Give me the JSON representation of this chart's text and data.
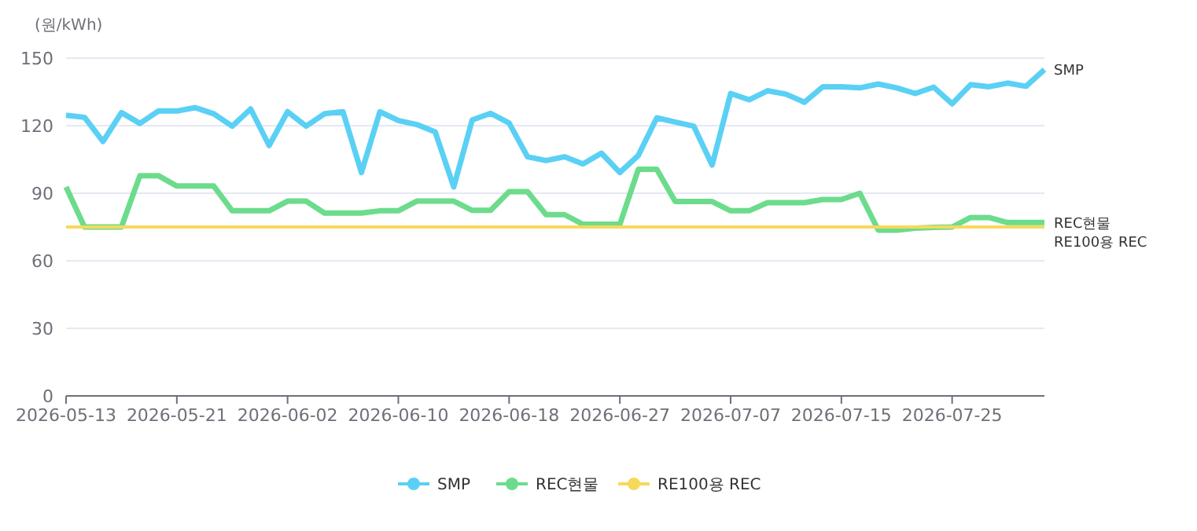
{
  "chart_data": {
    "type": "line",
    "ylabel": "(원/kWh)",
    "categories": [
      "2026-05-13",
      null,
      null,
      null,
      null,
      null,
      "2026-05-21",
      null,
      null,
      null,
      null,
      null,
      "2026-06-02",
      null,
      null,
      null,
      null,
      null,
      "2026-06-10",
      null,
      null,
      null,
      null,
      null,
      "2026-06-18",
      null,
      null,
      null,
      null,
      null,
      "2026-06-27",
      null,
      null,
      null,
      null,
      null,
      "2026-07-07",
      null,
      null,
      null,
      null,
      null,
      "2026-07-15",
      null,
      null,
      null,
      null,
      null,
      "2026-07-25",
      null,
      null,
      null,
      null,
      null
    ],
    "series": [
      {
        "name": "SMP",
        "color": "#5bd0f5",
        "values": [
          124.6,
          123.7,
          113,
          125.8,
          121,
          126.5,
          126.5,
          128,
          125.3,
          119.8,
          127.4,
          111.2,
          126.2,
          119.8,
          125.3,
          126.2,
          99.2,
          126.2,
          122.3,
          120.5,
          117.2,
          92.8,
          122.5,
          125.5,
          121.2,
          106.2,
          104.5,
          106.2,
          103,
          107.8,
          99.2,
          106.8,
          123.5,
          121.6,
          119.8,
          102.5,
          134.3,
          131.5,
          135.5,
          134,
          130.4,
          137.3,
          137.3,
          136.8,
          138.5,
          136.8,
          134.3,
          137.1,
          129.7,
          138.2,
          137.3,
          138.9,
          137.5,
          144.9
        ]
      },
      {
        "name": "REC현물",
        "color": "#6cdc8c",
        "values": [
          92.8,
          75,
          75,
          75,
          97.8,
          97.8,
          93.2,
          93.2,
          93.2,
          82.2,
          82.2,
          82.2,
          86.5,
          86.5,
          81.2,
          81.2,
          81.2,
          82.2,
          82.2,
          86.5,
          86.5,
          86.5,
          82.4,
          82.4,
          90.7,
          90.7,
          80.5,
          80.5,
          76.2,
          76.2,
          76.2,
          100.6,
          100.6,
          86.3,
          86.3,
          86.3,
          82.2,
          82.2,
          85.8,
          85.8,
          85.8,
          87.2,
          87.2,
          90,
          73.6,
          73.6,
          74.5,
          74.8,
          75,
          79.2,
          79.2,
          77,
          77,
          77
        ]
      },
      {
        "name": "RE100용 REC",
        "color": "#f7d95a",
        "values": [
          75,
          75,
          75,
          75,
          75,
          75,
          75,
          75,
          75,
          75,
          75,
          75,
          75,
          75,
          75,
          75,
          75,
          75,
          75,
          75,
          75,
          75,
          75,
          75,
          75,
          75,
          75,
          75,
          75,
          75,
          75,
          75,
          75,
          75,
          75,
          75,
          75,
          75,
          75,
          75,
          75,
          75,
          75,
          75,
          75,
          75,
          75,
          75,
          75,
          75,
          75,
          75,
          75,
          75
        ]
      }
    ],
    "ylim": [
      0,
      150
    ],
    "yticks": [
      0,
      30,
      60,
      90,
      120,
      150
    ],
    "grid": "y",
    "legend": "bottom"
  }
}
